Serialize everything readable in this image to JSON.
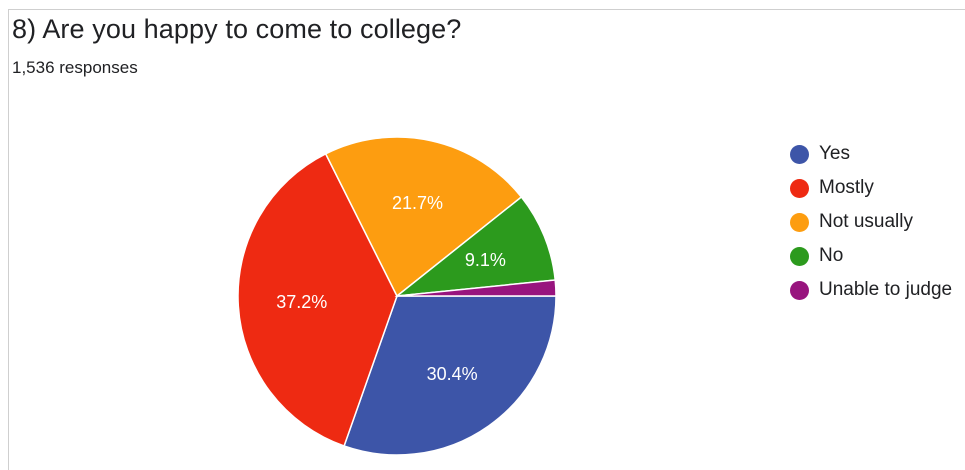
{
  "question": {
    "title": "8) Are you happy to come to college?",
    "responses": "1,536 responses"
  },
  "chart_data": {
    "type": "pie",
    "categories": [
      "Yes",
      "Mostly",
      "Not usually",
      "No",
      "Unable to judge"
    ],
    "values": [
      30.4,
      37.2,
      21.7,
      9.1,
      1.6
    ],
    "labels": [
      "30.4%",
      "37.2%",
      "21.7%",
      "9.1%",
      ""
    ],
    "colors": [
      "#3d55a8",
      "#ee2a12",
      "#fd9d10",
      "#2c9a1d",
      "#98147e"
    ],
    "legend_position": "right"
  }
}
